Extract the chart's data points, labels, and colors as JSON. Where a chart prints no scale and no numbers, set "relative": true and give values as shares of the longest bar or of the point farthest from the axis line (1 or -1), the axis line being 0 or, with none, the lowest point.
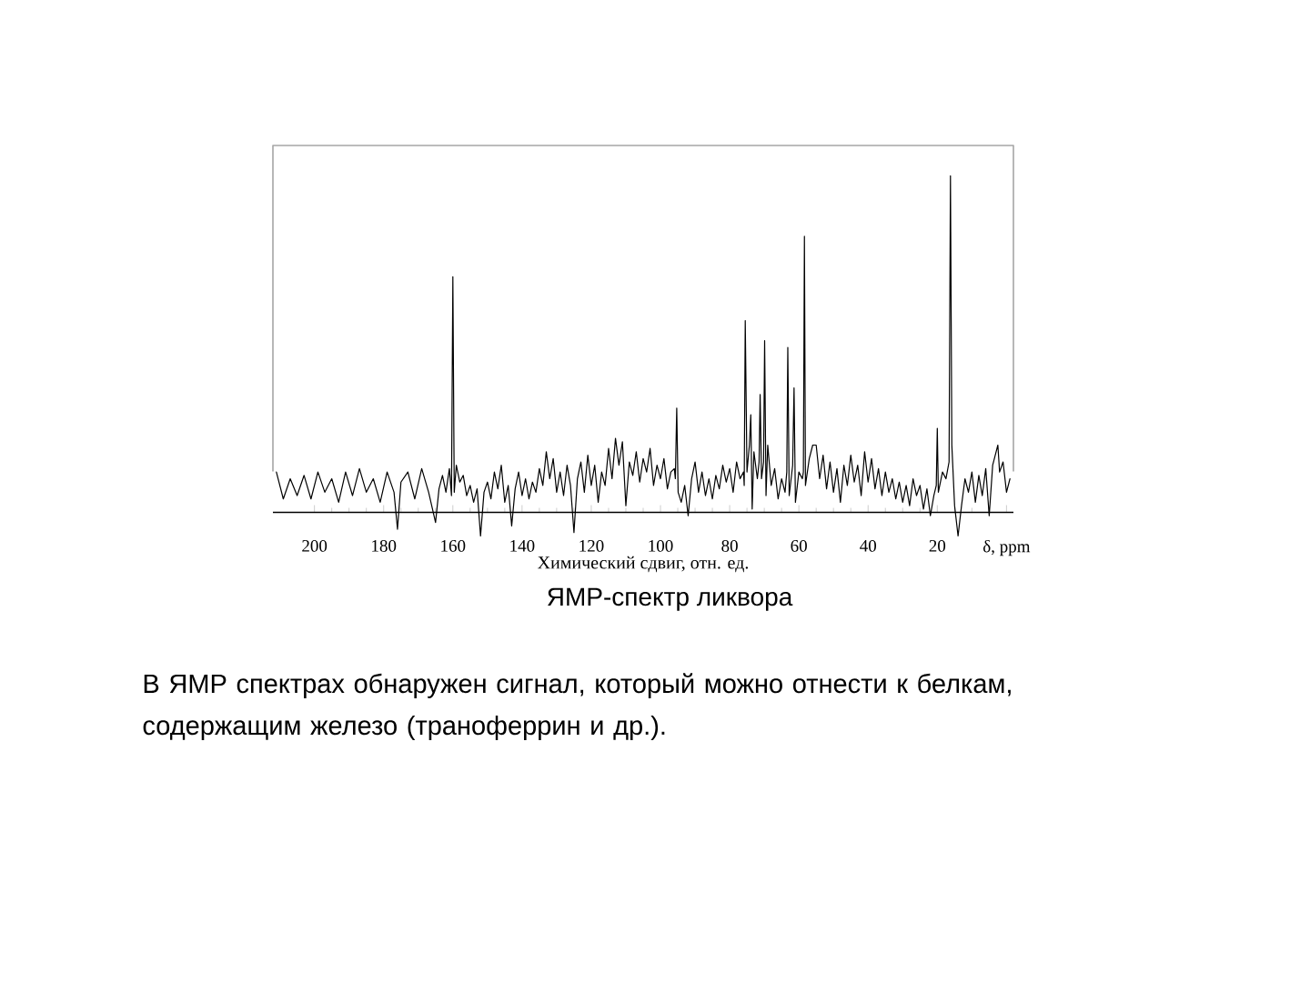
{
  "chart_data": {
    "type": "line",
    "relative": true,
    "color": "#000000",
    "xlabel": "Химический сдвиг, отн. ед.",
    "xlim": [
      212,
      -2
    ],
    "xticks": [
      200,
      180,
      160,
      140,
      120,
      100,
      80,
      60,
      40,
      20,
      {
        "value": 0,
        "label": "δ, ppm"
      }
    ],
    "x": [
      211,
      209,
      207,
      205,
      203,
      201,
      199,
      197,
      195,
      193,
      191,
      189,
      187,
      185,
      183,
      181,
      179,
      177,
      176,
      175,
      173,
      171,
      169,
      167,
      165,
      164,
      163,
      162,
      161,
      160.4,
      160,
      159.6,
      159,
      158,
      157,
      156,
      155,
      154,
      153,
      152,
      151,
      150,
      149,
      148,
      147,
      146,
      145,
      144,
      143,
      142,
      141,
      140,
      139,
      138,
      137,
      136,
      135,
      134,
      133,
      132,
      131,
      130,
      129,
      128,
      127,
      126,
      125,
      124,
      123,
      122,
      121,
      120,
      119,
      118,
      117,
      116,
      115,
      114,
      113,
      112,
      111,
      110,
      109,
      108,
      107,
      106,
      105,
      104,
      103,
      102,
      101,
      100,
      99,
      98,
      97,
      96,
      95.7,
      95.3,
      94.9,
      94,
      93,
      92,
      91,
      90,
      89,
      88,
      87,
      86,
      85,
      84,
      83,
      82,
      81,
      80,
      79,
      78,
      77,
      76,
      75.8,
      75.5,
      75,
      74.3,
      73.9,
      73.5,
      73,
      72,
      71.5,
      71.2,
      70.8,
      70.2,
      69.9,
      69.5,
      69,
      68,
      67,
      66,
      65,
      64,
      63.5,
      63.2,
      62.8,
      61.8,
      61.4,
      61,
      60,
      59,
      58.7,
      58.4,
      58.1,
      57,
      56,
      55,
      54,
      53,
      52,
      51,
      50,
      49,
      48,
      47,
      46,
      45,
      44,
      43,
      42,
      41,
      40,
      39,
      38,
      37,
      36,
      35,
      34,
      33,
      32,
      31,
      30,
      29,
      28,
      27,
      26,
      25,
      24,
      23,
      22,
      21,
      20.3,
      20,
      19.7,
      18.5,
      17.5,
      16.6,
      16.2,
      15.8,
      15,
      14,
      13,
      12,
      11,
      10,
      9,
      8,
      7,
      6,
      5,
      4,
      3,
      2.5,
      2,
      1,
      0,
      -1
    ],
    "values": [
      0.12,
      0.04,
      0.1,
      0.05,
      0.11,
      0.04,
      0.12,
      0.06,
      0.1,
      0.03,
      0.12,
      0.05,
      0.13,
      0.06,
      0.1,
      0.03,
      0.12,
      0.06,
      -0.05,
      0.09,
      0.12,
      0.04,
      0.13,
      0.06,
      -0.03,
      0.07,
      0.11,
      0.06,
      0.13,
      0.05,
      0.7,
      0.06,
      0.14,
      0.09,
      0.11,
      0.05,
      0.08,
      0.03,
      0.07,
      -0.07,
      0.06,
      0.09,
      0.04,
      0.12,
      0.07,
      0.14,
      0.03,
      0.08,
      -0.04,
      0.07,
      0.12,
      0.05,
      0.1,
      0.04,
      0.09,
      0.06,
      0.13,
      0.08,
      0.18,
      0.1,
      0.16,
      0.06,
      0.12,
      0.05,
      0.14,
      0.08,
      -0.06,
      0.1,
      0.15,
      0.06,
      0.17,
      0.08,
      0.14,
      0.03,
      0.12,
      0.08,
      0.19,
      0.1,
      0.22,
      0.14,
      0.21,
      0.02,
      0.15,
      0.11,
      0.18,
      0.09,
      0.16,
      0.12,
      0.19,
      0.08,
      0.14,
      0.1,
      0.16,
      0.07,
      0.12,
      0.13,
      0.1,
      0.31,
      0.06,
      0.03,
      0.08,
      -0.01,
      0.1,
      0.15,
      0.06,
      0.12,
      0.05,
      0.1,
      0.04,
      0.11,
      0.07,
      0.14,
      0.09,
      0.13,
      0.06,
      0.15,
      0.1,
      0.12,
      0.08,
      0.57,
      0.12,
      0.2,
      0.29,
      0.01,
      0.18,
      0.1,
      0.15,
      0.35,
      0.1,
      0.15,
      0.51,
      0.05,
      0.2,
      0.08,
      0.13,
      0.04,
      0.1,
      0.06,
      0.12,
      0.49,
      0.05,
      0.14,
      0.37,
      0.03,
      0.12,
      0.1,
      0.12,
      0.82,
      0.08,
      0.16,
      0.2,
      0.2,
      0.1,
      0.17,
      0.07,
      0.15,
      0.06,
      0.13,
      0.03,
      0.14,
      0.08,
      0.17,
      0.09,
      0.14,
      0.05,
      0.18,
      0.09,
      0.16,
      0.07,
      0.13,
      0.05,
      0.12,
      0.06,
      0.1,
      0.04,
      0.09,
      0.03,
      0.08,
      0.02,
      0.1,
      0.05,
      0.08,
      0.01,
      0.07,
      -0.01,
      0.05,
      0.08,
      0.25,
      0.06,
      0.12,
      0.1,
      0.15,
      1.0,
      0.2,
      0.02,
      -0.07,
      0.02,
      0.1,
      0.06,
      0.12,
      0.03,
      0.11,
      0.05,
      0.13,
      -0.01,
      0.14,
      0.18,
      0.2,
      0.12,
      0.15,
      0.06,
      0.1
    ],
    "annotations": [
      "ЯМР-спектр ликвора",
      "В ЯМР спектрах обнаружен сигнал, который можно отнести к белкам, содержащим железо (траноферрин и др.)."
    ]
  }
}
